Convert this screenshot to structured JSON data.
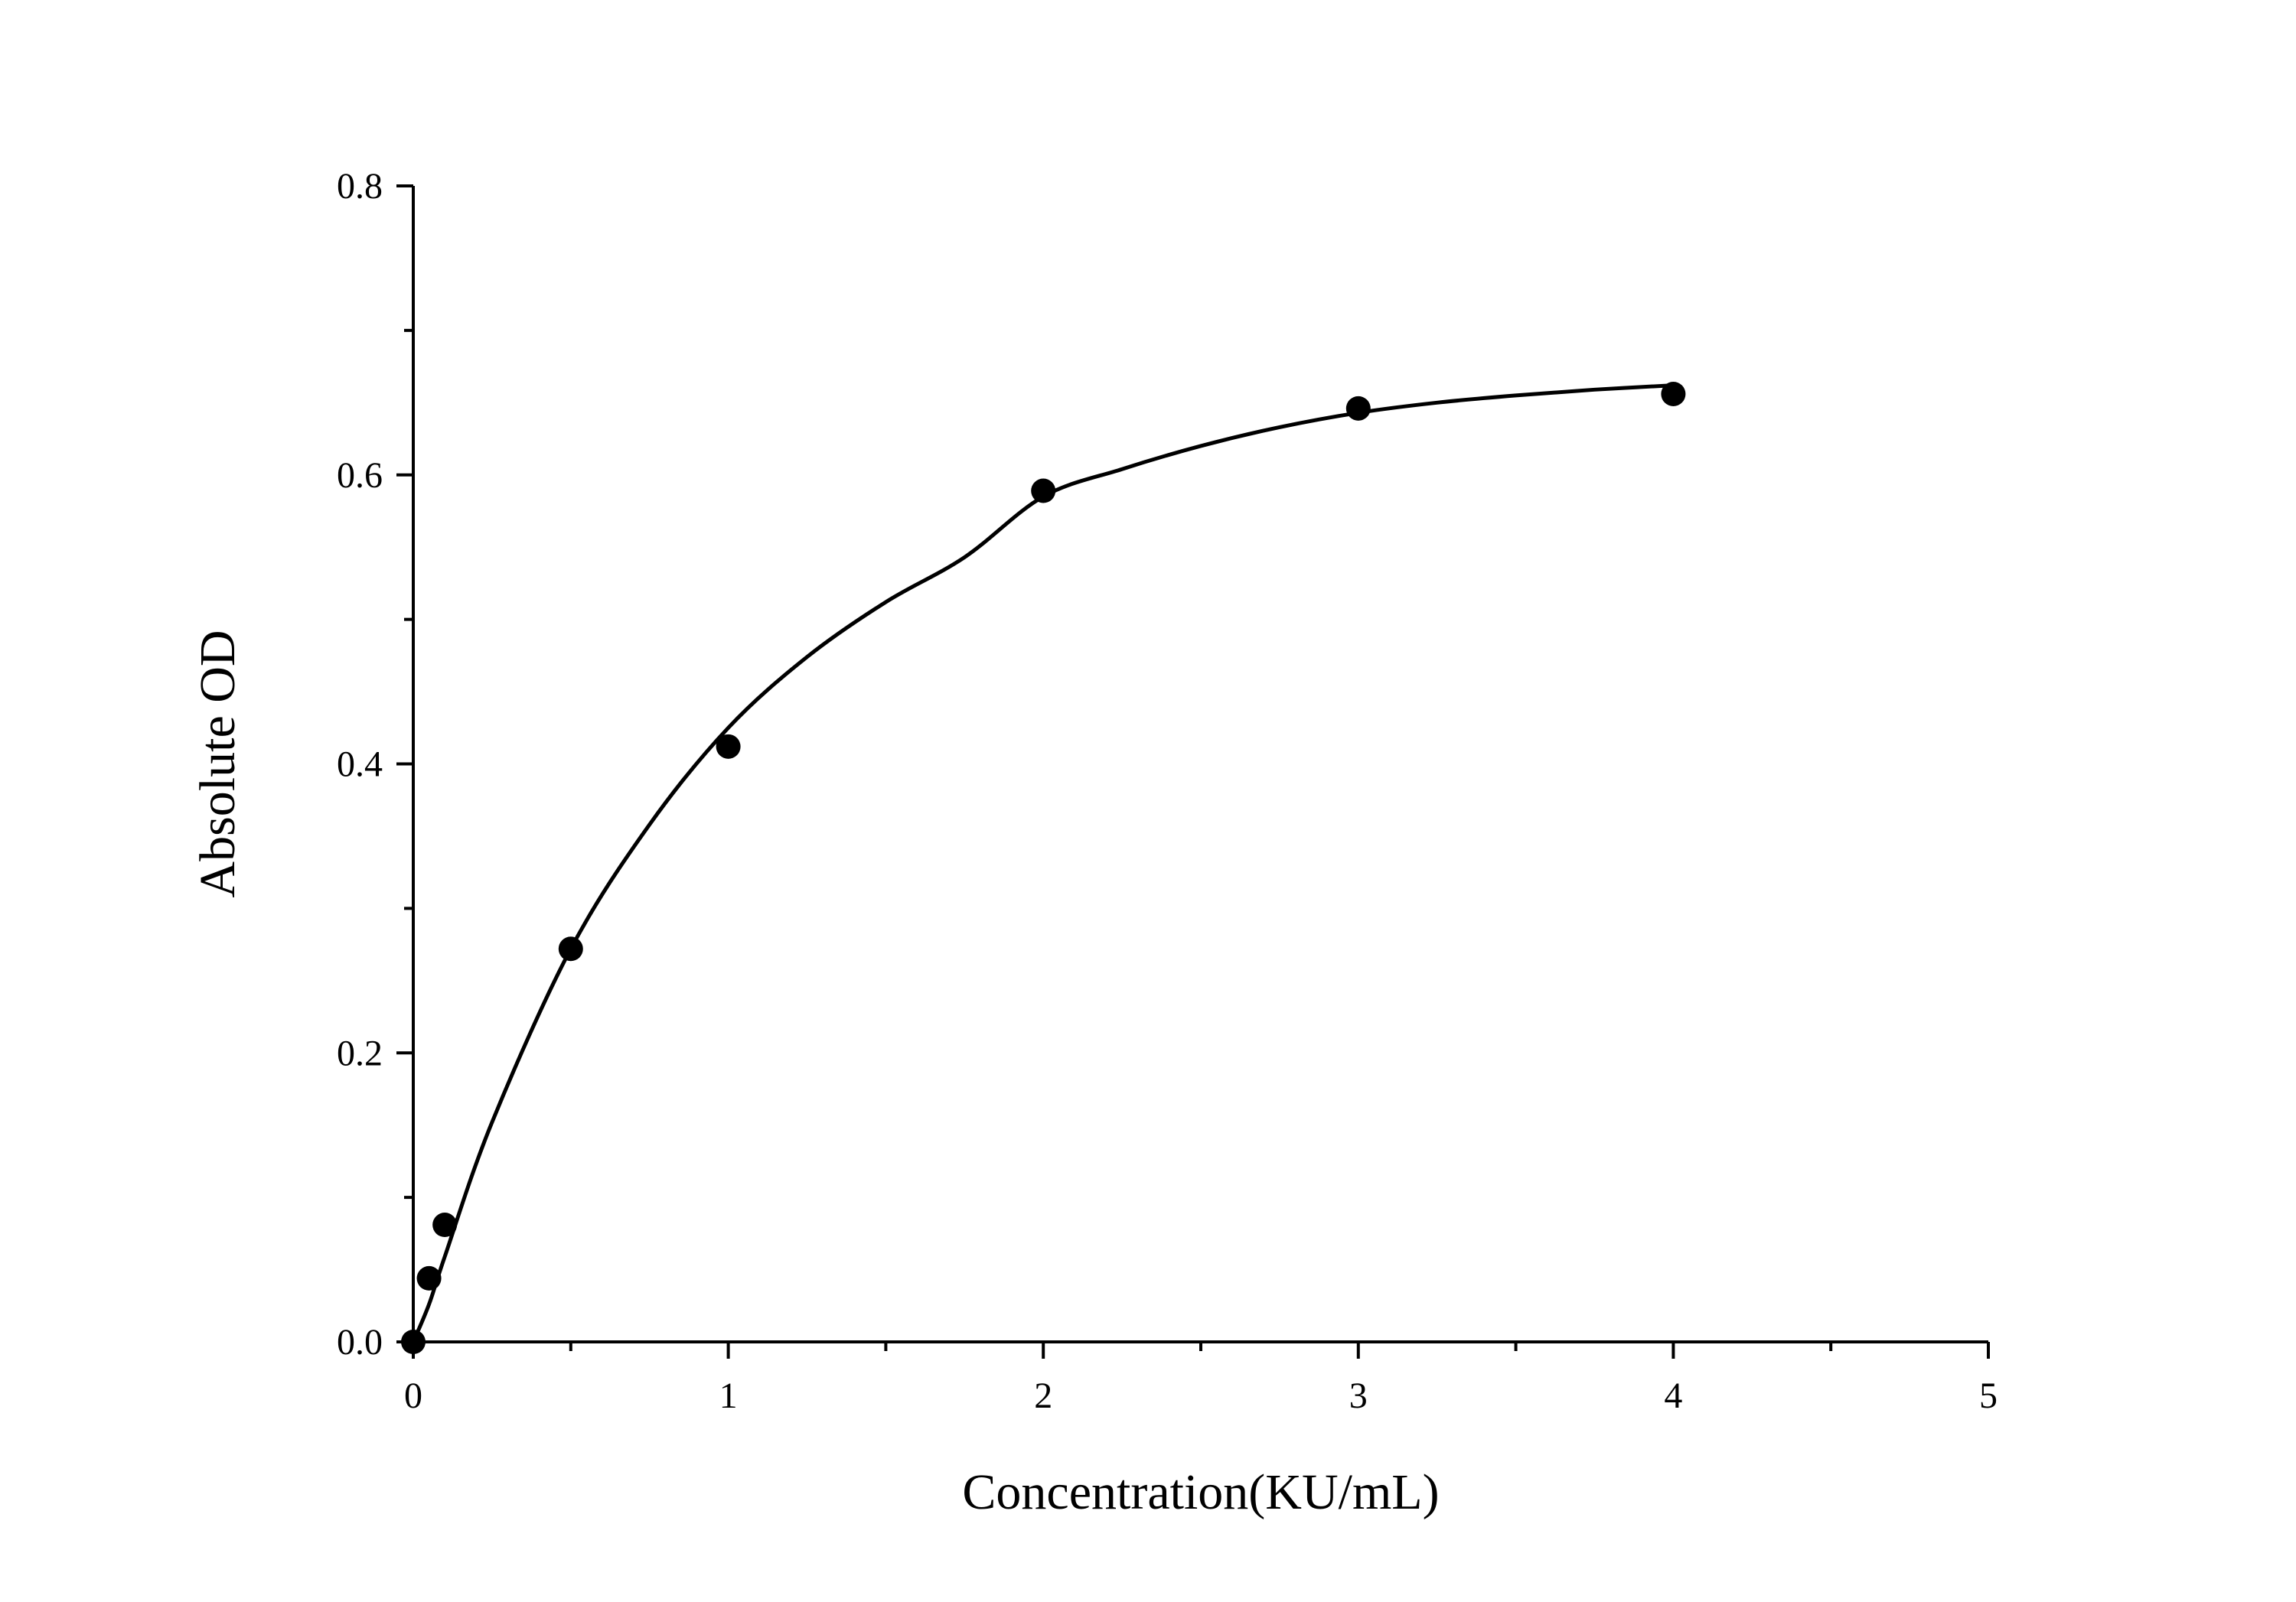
{
  "chart_data": {
    "type": "scatter",
    "xlabel": "Concentration(KU/mL)",
    "ylabel": "Absolute OD",
    "xlim": [
      0,
      5
    ],
    "ylim": [
      0,
      0.8
    ],
    "x_ticks": [
      0,
      1,
      2,
      3,
      4,
      5
    ],
    "x_tick_labels": [
      "0",
      "1",
      "2",
      "3",
      "4",
      "5"
    ],
    "x_minor_ticks": [
      0.5,
      1.5,
      2.5,
      3.5,
      4.5
    ],
    "y_ticks": [
      0.0,
      0.2,
      0.4,
      0.6,
      0.8
    ],
    "y_tick_labels": [
      "0.0",
      "0.2",
      "0.4",
      "0.6",
      "0.8"
    ],
    "y_minor_ticks": [
      0.1,
      0.3,
      0.5,
      0.7
    ],
    "grid": false,
    "legend": "none",
    "series": [
      {
        "kind": "points",
        "x": [
          0,
          0.05,
          0.1,
          0.5,
          1,
          2,
          3,
          4
        ],
        "y": [
          0.0,
          0.044,
          0.081,
          0.272,
          0.412,
          0.589,
          0.646,
          0.656
        ]
      },
      {
        "kind": "fitted-curve",
        "x": [
          0,
          0.05,
          0.1,
          0.25,
          0.5,
          0.75,
          1,
          1.25,
          1.5,
          1.75,
          2,
          2.25,
          2.5,
          2.75,
          3,
          3.25,
          3.5,
          3.75,
          4
        ],
        "y": [
          0.0,
          0.026,
          0.059,
          0.152,
          0.272,
          0.358,
          0.425,
          0.474,
          0.512,
          0.543,
          0.585,
          0.604,
          0.62,
          0.633,
          0.643,
          0.65,
          0.655,
          0.659,
          0.662
        ]
      }
    ]
  }
}
